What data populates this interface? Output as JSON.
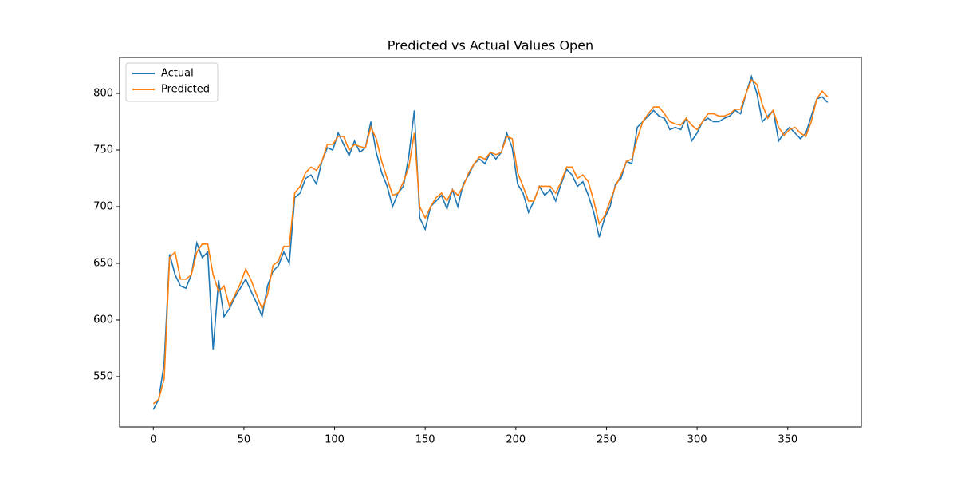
{
  "chart_data": {
    "type": "line",
    "title": "Predicted vs Actual Values Open",
    "x": [
      0,
      3,
      6,
      9,
      12,
      15,
      18,
      21,
      24,
      27,
      30,
      33,
      36,
      39,
      42,
      45,
      48,
      51,
      54,
      57,
      60,
      63,
      66,
      69,
      72,
      75,
      78,
      81,
      84,
      87,
      90,
      93,
      96,
      99,
      102,
      105,
      108,
      111,
      114,
      117,
      120,
      123,
      126,
      129,
      132,
      135,
      138,
      141,
      144,
      147,
      150,
      153,
      156,
      159,
      162,
      165,
      168,
      171,
      174,
      177,
      180,
      183,
      186,
      189,
      192,
      195,
      198,
      201,
      204,
      207,
      210,
      213,
      216,
      219,
      222,
      225,
      228,
      231,
      234,
      237,
      240,
      243,
      246,
      249,
      252,
      255,
      258,
      261,
      264,
      267,
      270,
      273,
      276,
      279,
      282,
      285,
      288,
      291,
      294,
      297,
      300,
      303,
      306,
      309,
      312,
      315,
      318,
      321,
      324,
      327,
      330,
      333,
      336,
      339,
      342,
      345,
      348,
      351,
      354,
      357,
      360,
      363,
      366,
      369,
      372
    ],
    "series": [
      {
        "name": "Actual",
        "color": "#1f77b4",
        "values": [
          521,
          530,
          562,
          658,
          640,
          630,
          628,
          640,
          668,
          655,
          660,
          574,
          635,
          603,
          610,
          620,
          628,
          636,
          625,
          615,
          603,
          630,
          643,
          648,
          660,
          650,
          708,
          712,
          725,
          728,
          720,
          740,
          752,
          750,
          765,
          755,
          745,
          758,
          748,
          752,
          775,
          748,
          730,
          718,
          700,
          712,
          718,
          745,
          785,
          690,
          680,
          700,
          705,
          710,
          698,
          715,
          700,
          720,
          728,
          738,
          742,
          738,
          748,
          742,
          748,
          765,
          752,
          720,
          712,
          695,
          705,
          718,
          710,
          715,
          705,
          720,
          733,
          728,
          718,
          722,
          710,
          695,
          673,
          690,
          700,
          720,
          725,
          740,
          738,
          770,
          775,
          780,
          785,
          780,
          778,
          768,
          770,
          768,
          778,
          758,
          765,
          775,
          778,
          775,
          775,
          778,
          780,
          785,
          782,
          800,
          815,
          800,
          775,
          780,
          785,
          758,
          765,
          770,
          765,
          760,
          765,
          780,
          795,
          797,
          792
        ]
      },
      {
        "name": "Predicted",
        "color": "#ff7f0e",
        "values": [
          526,
          530,
          548,
          655,
          660,
          636,
          636,
          640,
          660,
          667,
          667,
          640,
          625,
          630,
          612,
          622,
          632,
          645,
          635,
          622,
          610,
          622,
          648,
          652,
          665,
          665,
          712,
          718,
          730,
          735,
          732,
          740,
          755,
          755,
          762,
          762,
          750,
          755,
          753,
          752,
          770,
          760,
          740,
          725,
          710,
          712,
          722,
          735,
          765,
          700,
          690,
          700,
          708,
          712,
          705,
          715,
          710,
          718,
          730,
          738,
          744,
          742,
          748,
          746,
          748,
          762,
          760,
          730,
          718,
          705,
          705,
          718,
          718,
          718,
          712,
          722,
          735,
          735,
          725,
          728,
          722,
          705,
          685,
          692,
          705,
          718,
          728,
          740,
          742,
          760,
          775,
          782,
          788,
          788,
          782,
          775,
          773,
          772,
          778,
          772,
          768,
          775,
          782,
          782,
          780,
          780,
          782,
          786,
          786,
          800,
          812,
          808,
          790,
          778,
          785,
          770,
          763,
          768,
          770,
          765,
          762,
          775,
          795,
          802,
          797
        ]
      }
    ],
    "xlim": [
      -18.6,
      390.6
    ],
    "ylim": [
      505.6,
      831.7
    ],
    "xticks": [
      0,
      50,
      100,
      150,
      200,
      250,
      300,
      350
    ],
    "yticks": [
      550,
      600,
      650,
      700,
      750,
      800
    ],
    "grid": false,
    "legend": "upper left"
  }
}
